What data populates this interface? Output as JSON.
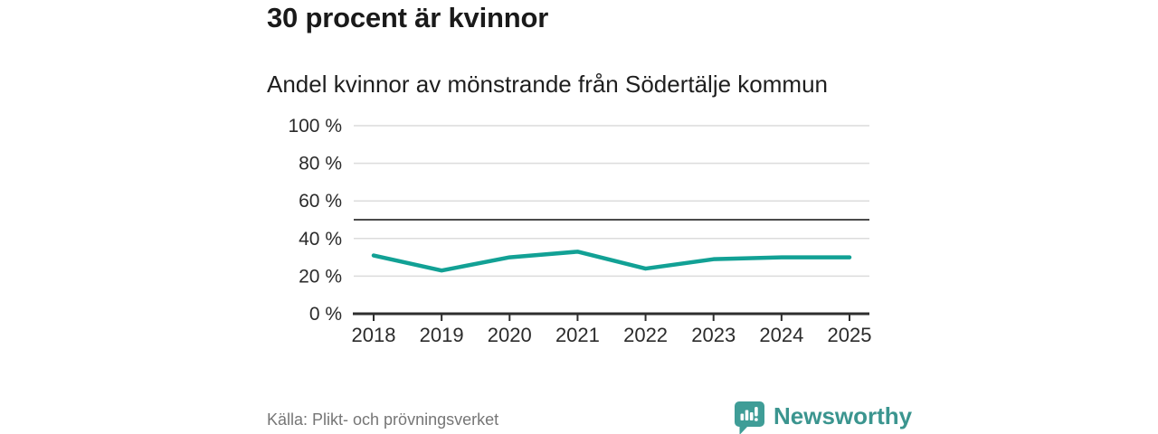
{
  "page": {
    "title": "30 procent är kvinnor",
    "subtitle": "Andel kvinnor av mönstrande från Södertälje kommun",
    "source": "Källa: Plikt- och prövningsverket",
    "brand": {
      "name": "Newsworthy",
      "icon": "speech-bubble-bar-chart-exclamation-icon"
    }
  },
  "colors": {
    "series_line": "#12a195",
    "brand_teal": "#3b958f",
    "gridline": "#dcdcdc",
    "reference_line": "#4a4a4a",
    "axis": "#2e2e2e",
    "tick_label": "#2b2b2b",
    "source_text": "#767676",
    "title_text": "#1a1a1a",
    "background": "#ffffff"
  },
  "chart_data": {
    "type": "line",
    "title": "30 procent är kvinnor",
    "subtitle": "Andel kvinnor av mönstrande från Södertälje kommun",
    "x": [
      2018,
      2019,
      2020,
      2021,
      2022,
      2023,
      2024,
      2025
    ],
    "series": [
      {
        "name": "Andel kvinnor av mönstrande",
        "color": "#12a195",
        "values": [
          31,
          23,
          30,
          33,
          24,
          29,
          30,
          30
        ]
      }
    ],
    "unit": "%",
    "ylim": [
      0,
      100
    ],
    "y_ticks": [
      0,
      20,
      40,
      60,
      80,
      100
    ],
    "y_tick_suffix": " %",
    "reference_line": 50,
    "grid": "horizontal-only",
    "legend": "none",
    "source": "Källa: Plikt- och prövningsverket"
  }
}
